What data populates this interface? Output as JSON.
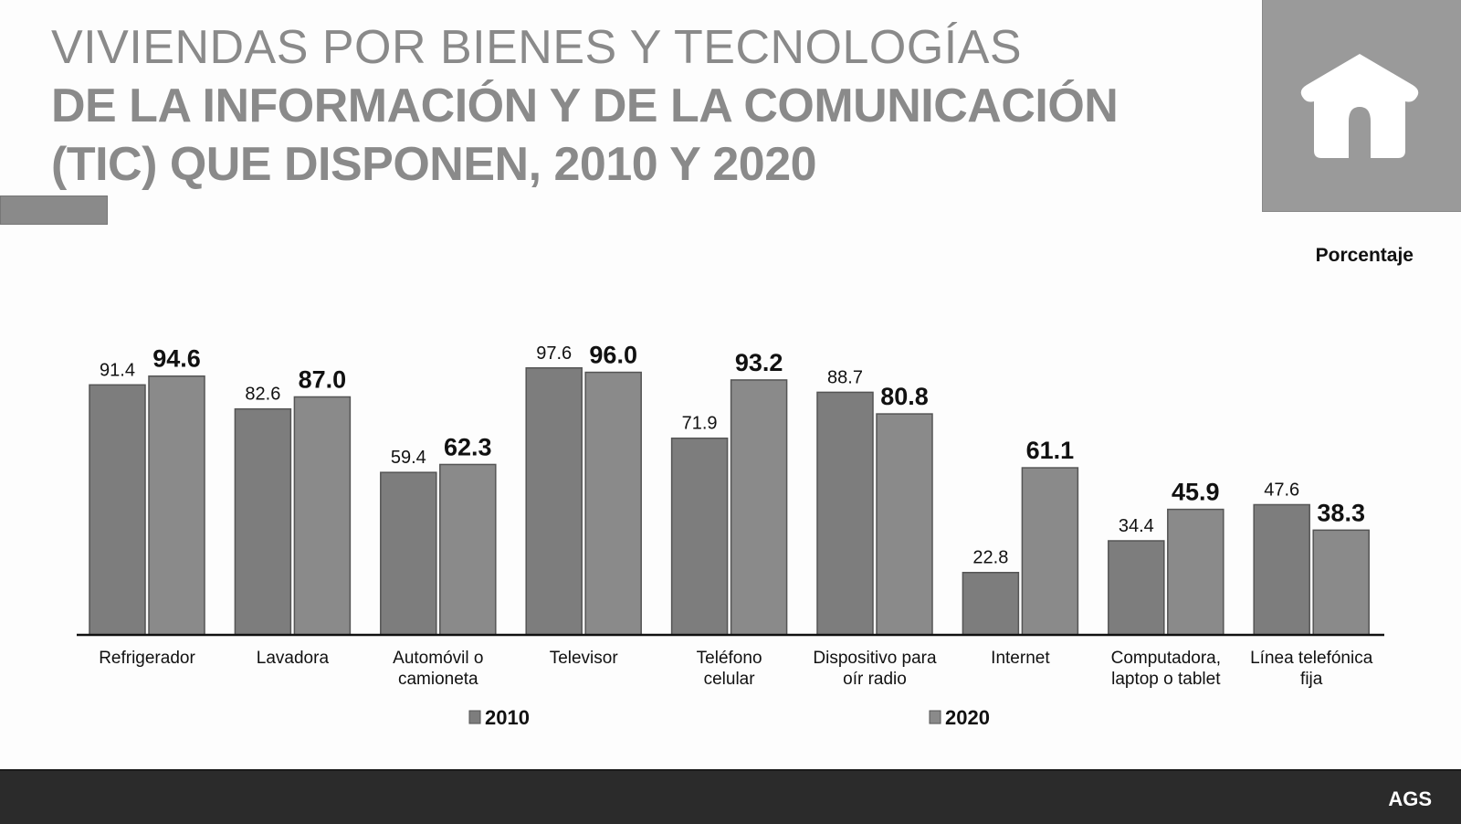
{
  "slide": {
    "title_line1": "VIVIENDAS POR BIENES Y TECNOLOGÍAS",
    "title_line2": "DE LA INFORMACIÓN Y DE LA COMUNICACIÓN",
    "title_line3": "(TIC) QUE DISPONEN, 2010 Y 2020",
    "icon": "house-icon",
    "unit_label": "Porcentaje",
    "footer_label": "AGS"
  },
  "colors": {
    "bar_2010": "#7d7d7d",
    "bar_2020": "#8a8a8a",
    "axis": "#111111",
    "panel": "#9a9a9a",
    "footer": "#2b2b2b"
  },
  "chart_data": {
    "type": "bar",
    "title": "VIVIENDAS POR BIENES Y TECNOLOGÍAS DE LA INFORMACIÓN Y DE LA COMUNICACIÓN (TIC) QUE DISPONEN, 2010 Y 2020",
    "ylabel": "Porcentaje",
    "xlabel": "",
    "ylim": [
      0,
      100
    ],
    "grid": false,
    "legend_position": "bottom",
    "categories": [
      [
        "Refrigerador"
      ],
      [
        "Lavadora"
      ],
      [
        "Automóvil o",
        "camioneta"
      ],
      [
        "Televisor"
      ],
      [
        "Teléfono",
        "celular"
      ],
      [
        "Dispositivo para",
        "oír radio"
      ],
      [
        "Internet"
      ],
      [
        "Computadora,",
        "laptop o tablet"
      ],
      [
        "Línea telefónica",
        "fija"
      ]
    ],
    "series": [
      {
        "name": "2010",
        "values": [
          91.4,
          82.6,
          59.4,
          97.6,
          71.9,
          88.7,
          22.8,
          34.4,
          47.6
        ],
        "labels": [
          "91.4",
          "82.6",
          "59.4",
          "97.6",
          "71.9",
          "88.7",
          "22.8",
          "34.4",
          "47.6"
        ]
      },
      {
        "name": "2020",
        "values": [
          94.6,
          87.0,
          62.3,
          96.0,
          93.2,
          80.8,
          61.1,
          45.9,
          38.3
        ],
        "labels": [
          "94.6",
          "87.0",
          "62.3",
          "96.0",
          "93.2",
          "80.8",
          "61.1",
          "45.9",
          "38.3"
        ]
      }
    ]
  }
}
